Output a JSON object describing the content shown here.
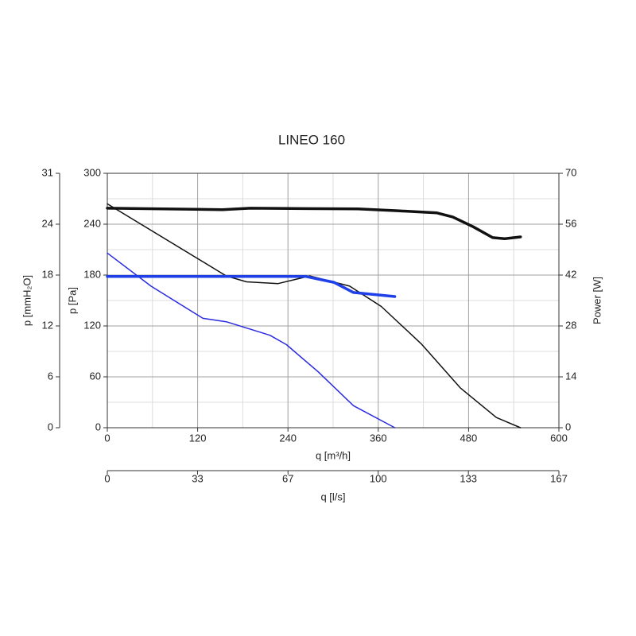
{
  "chart_data": {
    "type": "line",
    "title": "LINEO 160",
    "x_label": "q [m³/h]",
    "x2_label": "q [l/s]",
    "y_label": "p [Pa]",
    "y2_label": "Power [W]",
    "y3_label": "p [mmH₂O]",
    "xlim": [
      0,
      600
    ],
    "xticks": [
      0,
      120,
      240,
      360,
      480,
      600
    ],
    "x_minor_ticks": [
      60,
      180,
      300,
      420,
      540
    ],
    "x2lim": [
      0,
      166.7
    ],
    "x2ticks": [
      0,
      {
        "value": 33.3,
        "label": "33"
      },
      {
        "value": 66.7,
        "label": "67"
      },
      100,
      {
        "value": 133.3,
        "label": "133"
      },
      {
        "value": 166.7,
        "label": "167"
      }
    ],
    "ylim": [
      0,
      300
    ],
    "yticks": [
      0,
      60,
      120,
      180,
      240,
      300
    ],
    "y_minor_ticks": [
      30,
      90,
      150,
      210,
      270
    ],
    "y2lim": [
      0,
      70
    ],
    "y2ticks": [
      0,
      14,
      28,
      42,
      56,
      70
    ],
    "y3lim": [
      0,
      30.6
    ],
    "y3ticks": [
      0,
      {
        "value": 6.12,
        "label": "6"
      },
      {
        "value": 12.24,
        "label": "12"
      },
      {
        "value": 18.36,
        "label": "18"
      },
      {
        "value": 24.48,
        "label": "24"
      },
      {
        "value": 30.6,
        "label": "31"
      }
    ],
    "grid": true,
    "series": [
      {
        "color": "#111111",
        "width": 1.5,
        "x": [
          0,
          158,
          185,
          227,
          269,
          322,
          364,
          417,
          469,
          517,
          549
        ],
        "values": [
          264,
          179,
          172,
          170,
          179,
          167,
          143,
          99,
          47,
          12,
          0
        ]
      },
      {
        "color": "#111111",
        "width": 3.5,
        "axis": "y2",
        "x": [
          0,
          153,
          190,
          333,
          386,
          438,
          459,
          486,
          512,
          528,
          549
        ],
        "values": [
          60.4,
          60,
          60.4,
          60.2,
          59.7,
          59.1,
          58,
          55.3,
          52.3,
          52,
          52.5
        ]
      },
      {
        "color": "#2a2ae0",
        "width": 1.5,
        "x": [
          0,
          58,
          127,
          158,
          216,
          238,
          280,
          327,
          382
        ],
        "values": [
          206,
          167,
          129,
          125,
          109,
          98,
          66,
          26,
          0
        ]
      },
      {
        "color": "#1f3fe8",
        "width": 3.5,
        "axis": "y2",
        "x": [
          0,
          132,
          264,
          301,
          327,
          382
        ],
        "values": [
          41.6,
          41.6,
          41.6,
          40,
          37.2,
          36.1
        ]
      }
    ]
  }
}
